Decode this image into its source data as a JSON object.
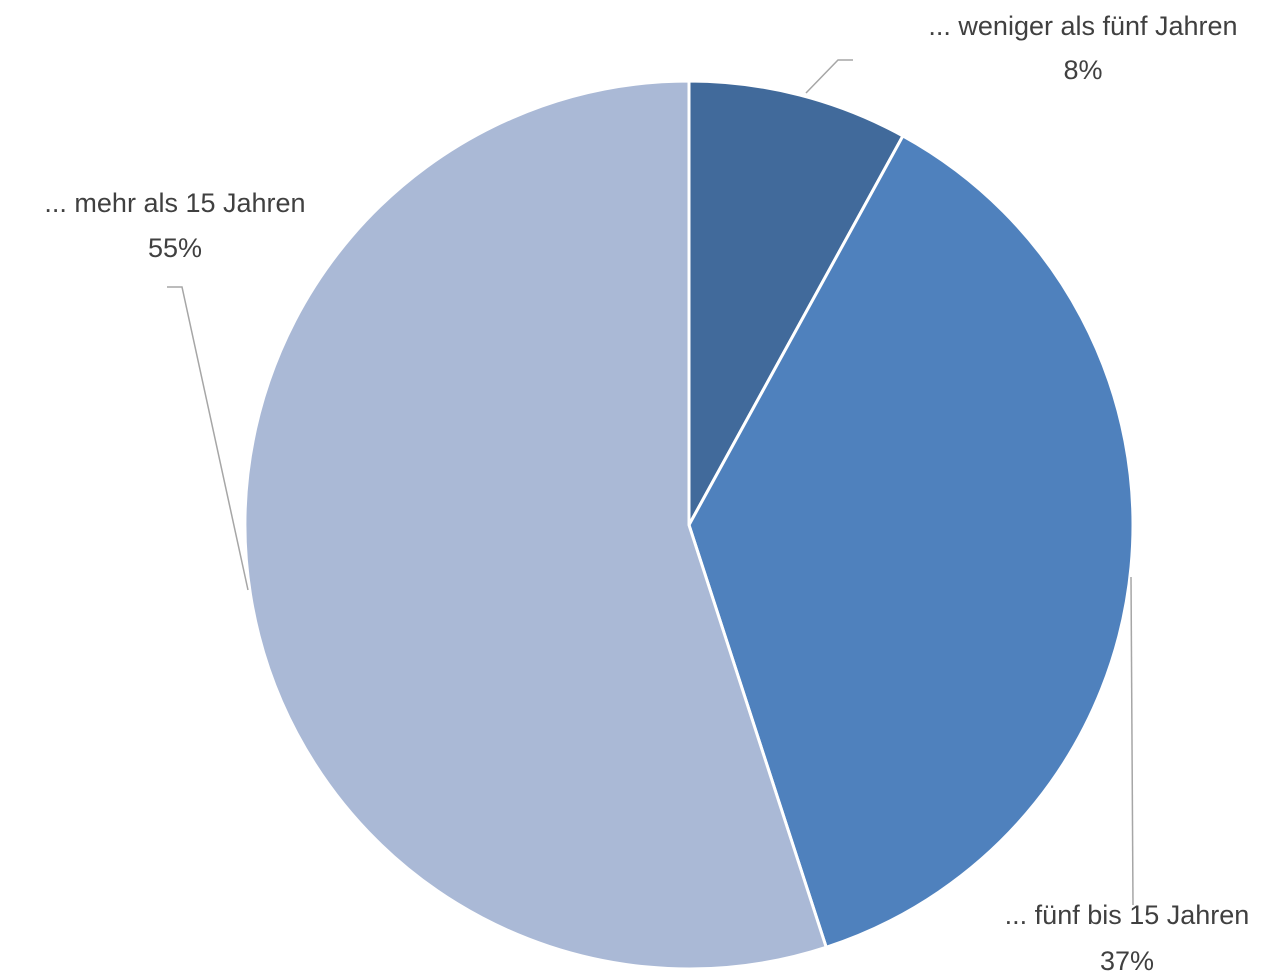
{
  "chart_data": {
    "type": "pie",
    "categories": [
      "... weniger als fünf Jahren",
      "... fünf bis 15 Jahren",
      "... mehr als 15 Jahren"
    ],
    "values": [
      8,
      37,
      55
    ],
    "value_labels": [
      "8%",
      "37%",
      "55%"
    ],
    "colors": [
      "#416a9b",
      "#4f81bd",
      "#aab9d6"
    ]
  }
}
